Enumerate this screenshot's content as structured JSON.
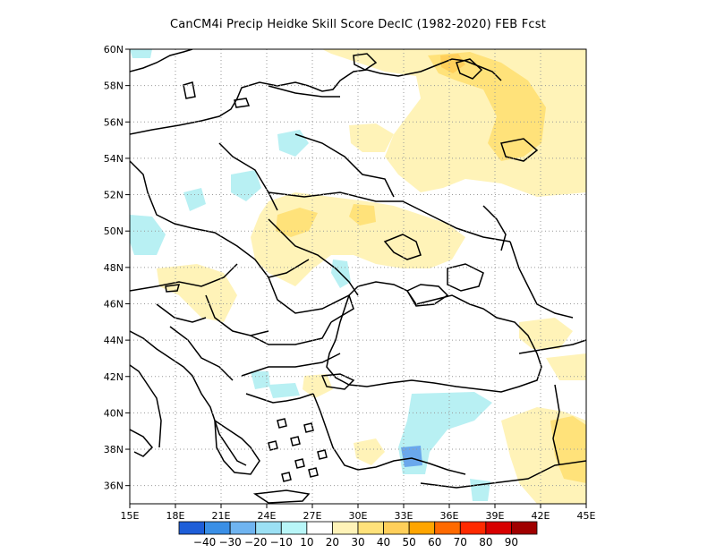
{
  "title": "CanCM4i Precip Heidke Skill Score DecIC (1982-2020) FEB Fcst",
  "map": {
    "lon_range": [
      15,
      45
    ],
    "lat_range": [
      35,
      60
    ],
    "x_ticks": [
      "15E",
      "18E",
      "21E",
      "24E",
      "27E",
      "30E",
      "33E",
      "36E",
      "39E",
      "42E",
      "45E"
    ],
    "y_ticks": [
      "36N",
      "38N",
      "40N",
      "42N",
      "44N",
      "46N",
      "48N",
      "50N",
      "52N",
      "54N",
      "56N",
      "58N",
      "60N"
    ],
    "grid": "dotted",
    "field_colors": {
      "pos_10_20": "#fff3b8",
      "pos_20_30": "#ffe27a",
      "pos_30_40": "#ffcf5a",
      "neg_10_20": "#b8f0f3",
      "neg_20_30": "#8ad2ee",
      "neg_30_40": "#6aa8ec"
    }
  },
  "colorbar": {
    "labels": [
      "-40",
      "-30",
      "-20",
      "-10",
      "10",
      "20",
      "30",
      "40",
      "50",
      "60",
      "70",
      "80",
      "90"
    ],
    "colors": [
      "#1e5ed8",
      "#3a8fe6",
      "#6fb4f0",
      "#9be0f4",
      "#b8f6f8",
      "#ffffff",
      "#fff3b8",
      "#ffe27a",
      "#ffcf5a",
      "#ffa500",
      "#ff6a00",
      "#ff2a00",
      "#d80000",
      "#a00000"
    ]
  }
}
